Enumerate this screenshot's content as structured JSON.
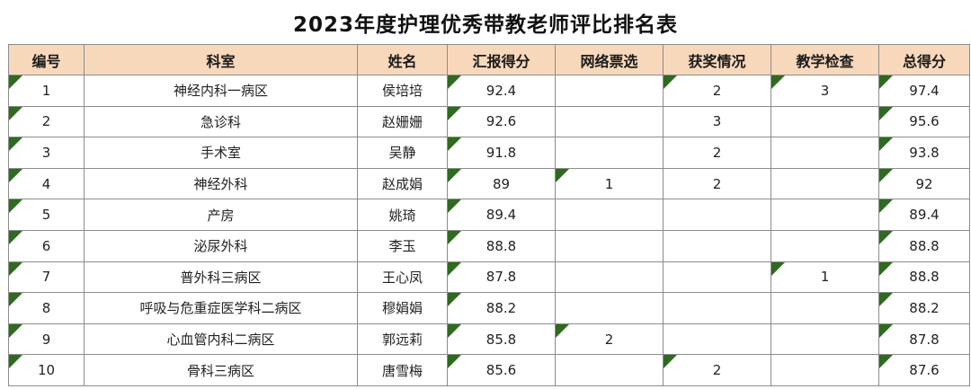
{
  "title": "2023年度护理优秀带教老师评比排名表",
  "columns": [
    "编号",
    "科室",
    "姓名",
    "汇报得分",
    "网络票选",
    "获奖情况",
    "教学检查",
    "总得分"
  ],
  "rows": [
    {
      "id": "1",
      "dept": "神经内科一病区",
      "name": "侯培培",
      "report": "92.4",
      "vote": "",
      "award": "2",
      "inspect": "3",
      "total": "97.4"
    },
    {
      "id": "2",
      "dept": "急诊科",
      "name": "赵姗姗",
      "report": "92.6",
      "vote": "",
      "award": "3",
      "inspect": "",
      "total": "95.6"
    },
    {
      "id": "3",
      "dept": "手术室",
      "name": "吴静",
      "report": "91.8",
      "vote": "",
      "award": "2",
      "inspect": "",
      "total": "93.8"
    },
    {
      "id": "4",
      "dept": "神经外科",
      "name": "赵成娟",
      "report": "89",
      "vote": "1",
      "award": "2",
      "inspect": "",
      "total": "92"
    },
    {
      "id": "5",
      "dept": "产房",
      "name": "姚琦",
      "report": "89.4",
      "vote": "",
      "award": "",
      "inspect": "",
      "total": "89.4"
    },
    {
      "id": "6",
      "dept": "泌尿外科",
      "name": "李玉",
      "report": "88.8",
      "vote": "",
      "award": "",
      "inspect": "",
      "total": "88.8"
    },
    {
      "id": "7",
      "dept": "普外科三病区",
      "name": "王心凤",
      "report": "87.8",
      "vote": "",
      "award": "",
      "inspect": "1",
      "total": "88.8"
    },
    {
      "id": "8",
      "dept": "呼吸与危重症医学科二病区",
      "name": "穆娟娟",
      "report": "88.2",
      "vote": "",
      "award": "",
      "inspect": "",
      "total": "88.2"
    },
    {
      "id": "9",
      "dept": "心血管内科二病区",
      "name": "郭远莉",
      "report": "85.8",
      "vote": "2",
      "award": "",
      "inspect": "",
      "total": "87.8"
    },
    {
      "id": "10",
      "dept": "骨科三病区",
      "name": "唐雪梅",
      "report": "85.6",
      "vote": "",
      "award": "2",
      "inspect": "",
      "total": "87.6"
    }
  ],
  "marker_color": "#2e6b1f",
  "header_color": "#f8d8bb"
}
